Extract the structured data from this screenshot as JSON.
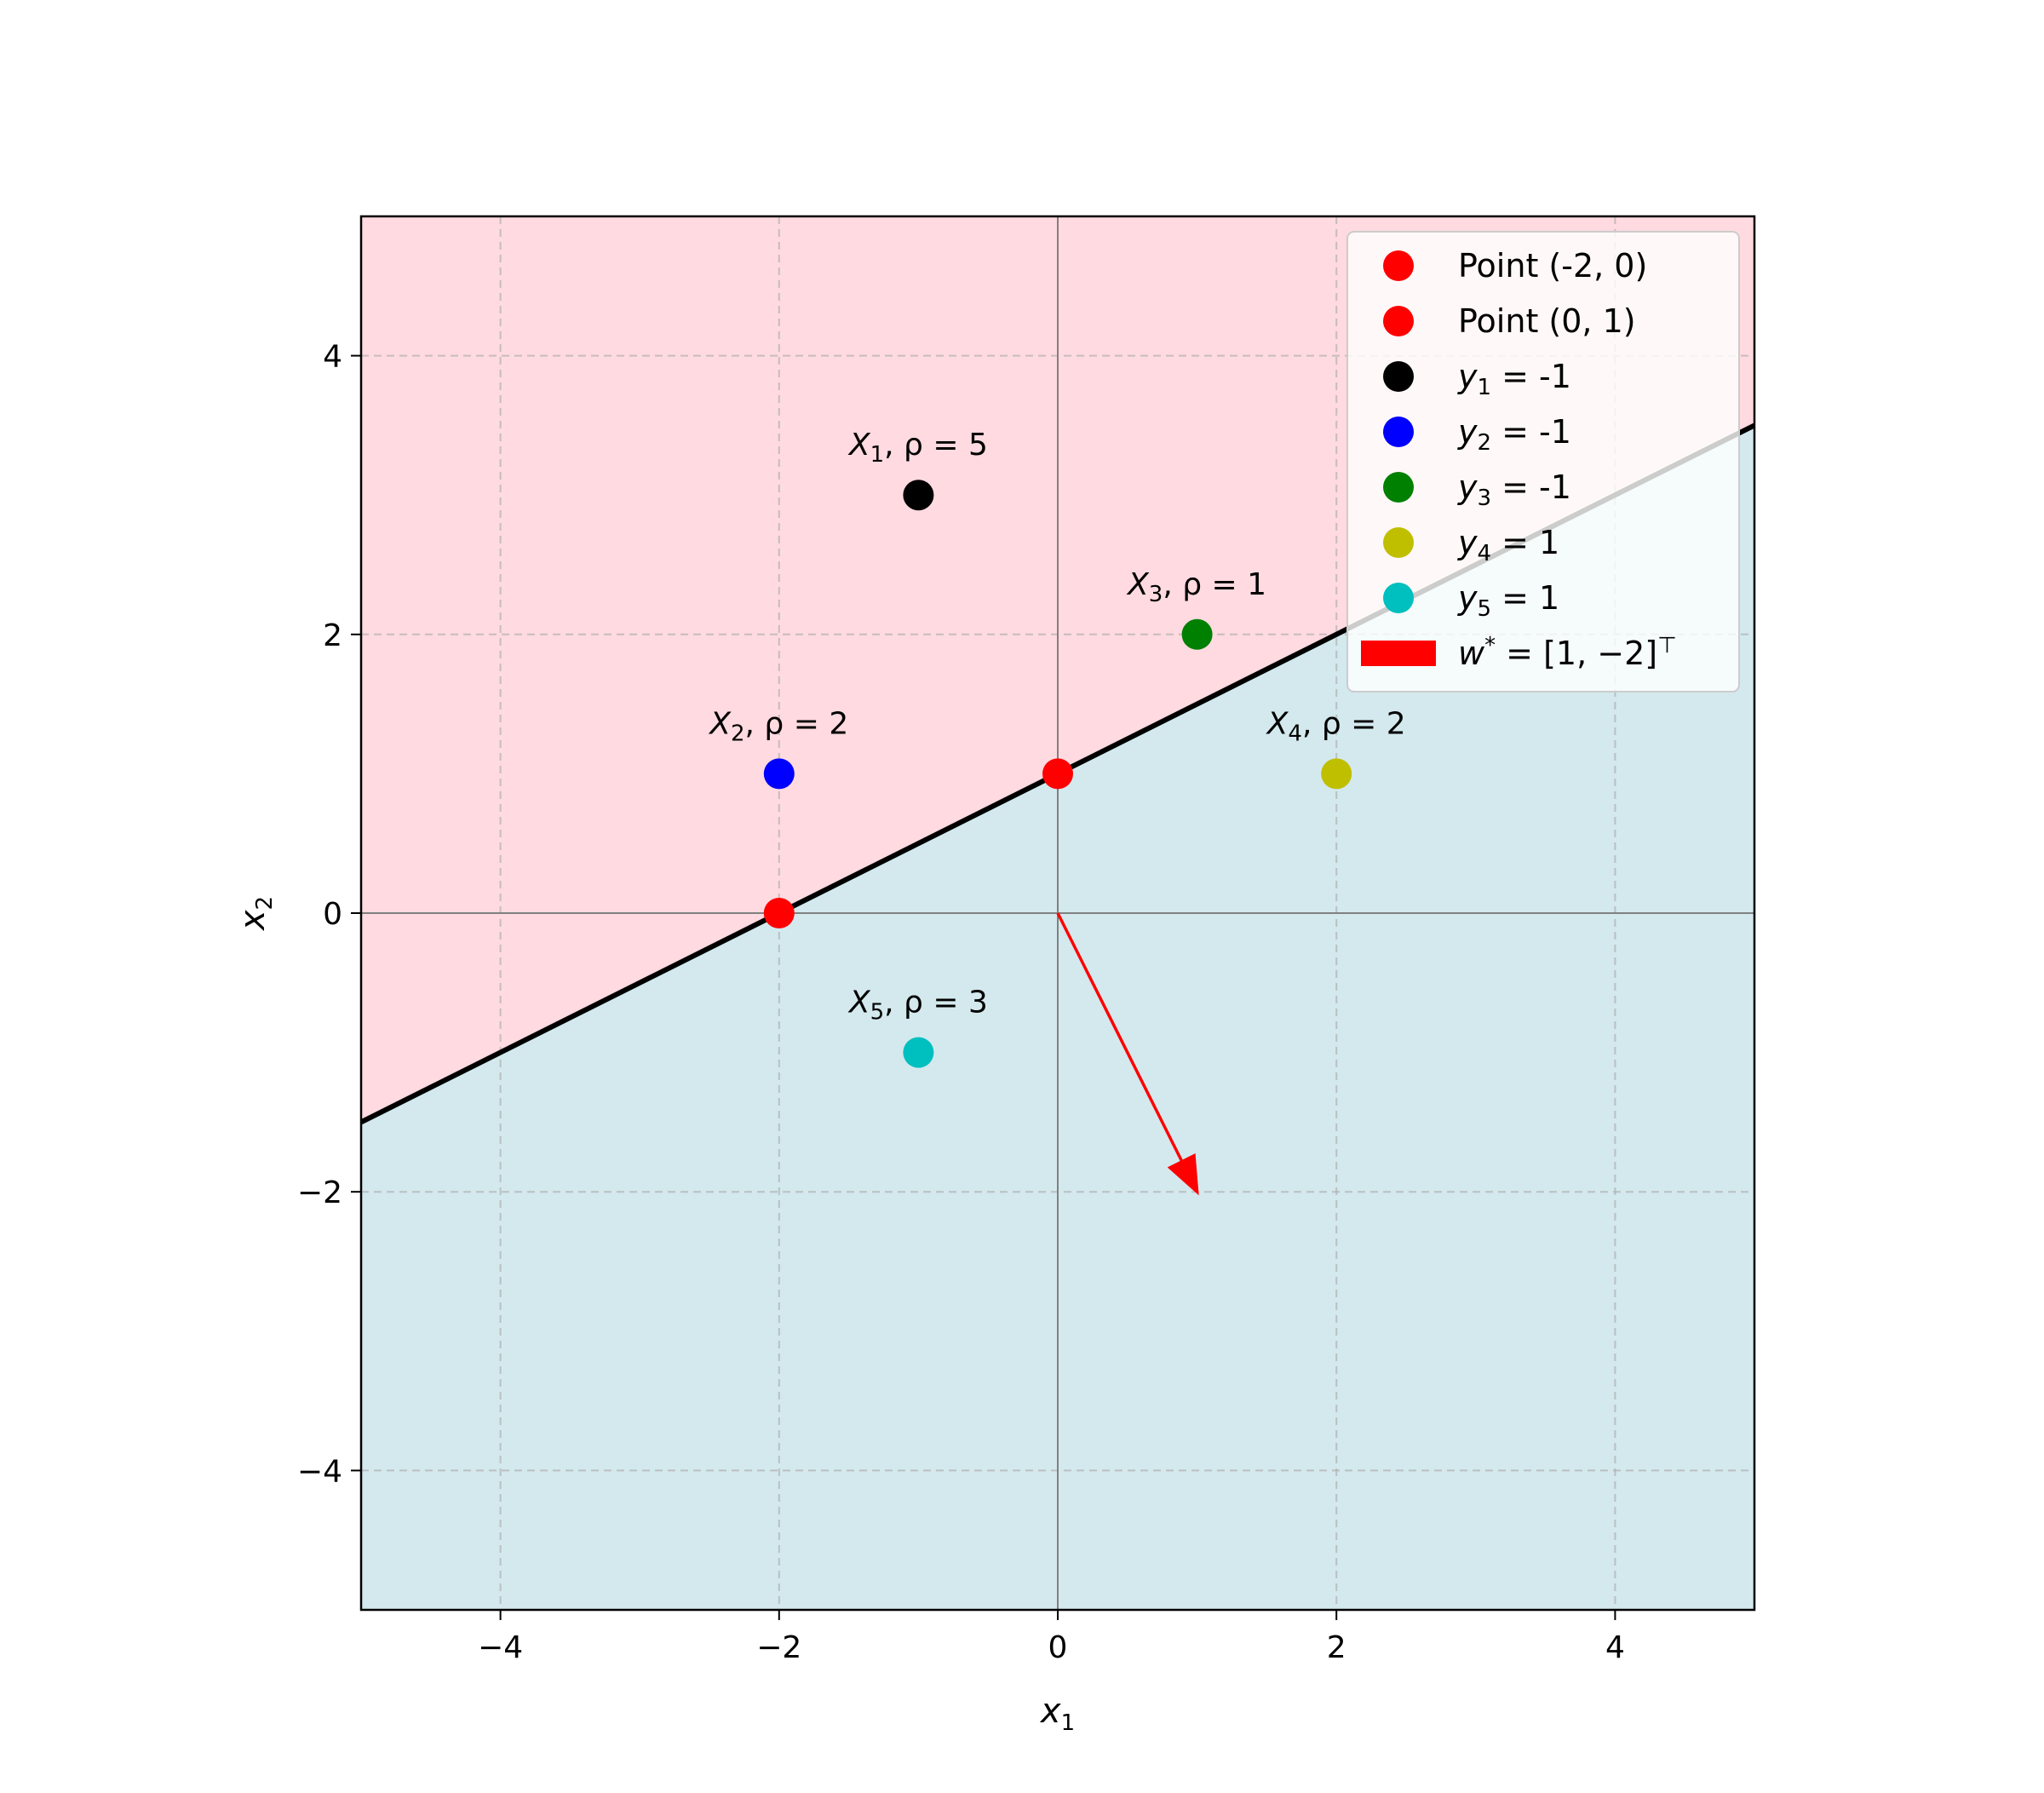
{
  "chart_data": {
    "type": "scatter",
    "title": "",
    "xlabel": "x",
    "xlabel_sub": "1",
    "ylabel": "x",
    "ylabel_sub": "2",
    "xlim": [
      -5,
      5
    ],
    "ylim": [
      -5,
      5
    ],
    "grid": true,
    "legend_position": "top-right",
    "x_ticks": [
      {
        "value": -4,
        "label": "−4"
      },
      {
        "value": -2,
        "label": "−2"
      },
      {
        "value": 0,
        "label": "0"
      },
      {
        "value": 2,
        "label": "2"
      },
      {
        "value": 4,
        "label": "4"
      }
    ],
    "y_ticks": [
      {
        "value": -4,
        "label": "−4"
      },
      {
        "value": -2,
        "label": "−2"
      },
      {
        "value": 0,
        "label": "0"
      },
      {
        "value": 2,
        "label": "2"
      },
      {
        "value": 4,
        "label": "4"
      }
    ],
    "regions": [
      {
        "side": "above",
        "color": "#ffdae0"
      },
      {
        "side": "below",
        "color": "#d3e9ee"
      }
    ],
    "decision_line": {
      "slope": 0.5,
      "intercept": 1,
      "color": "#000000"
    },
    "points": [
      {
        "x": -2,
        "y": 0,
        "color": "#ff0000",
        "legend": "Point (-2, 0)"
      },
      {
        "x": 0,
        "y": 1,
        "color": "#ff0000",
        "legend": "Point (0, 1)"
      },
      {
        "x": -1,
        "y": 3,
        "color": "#000000",
        "var": "y",
        "sub": "1",
        "value": " = -1",
        "label_var": "X",
        "label_sub": "1",
        "label_rest": ", ρ = 5"
      },
      {
        "x": -2,
        "y": 1,
        "color": "#0000ff",
        "var": "y",
        "sub": "2",
        "value": " = -1",
        "label_var": "X",
        "label_sub": "2",
        "label_rest": ", ρ = 2"
      },
      {
        "x": 1,
        "y": 2,
        "color": "#008000",
        "var": "y",
        "sub": "3",
        "value": " = -1",
        "label_var": "X",
        "label_sub": "3",
        "label_rest": ", ρ = 1"
      },
      {
        "x": 2,
        "y": 1,
        "color": "#bfbf00",
        "var": "y",
        "sub": "4",
        "value": " = 1",
        "label_var": "X",
        "label_sub": "4",
        "label_rest": ", ρ = 2"
      },
      {
        "x": -1,
        "y": -1,
        "color": "#00bfbf",
        "var": "y",
        "sub": "5",
        "value": " = 1",
        "label_var": "X",
        "label_sub": "5",
        "label_rest": ", ρ = 3"
      }
    ],
    "arrow": {
      "from": [
        0,
        0
      ],
      "to": [
        1,
        -2
      ],
      "color": "#ff0000",
      "legend_var": "w",
      "legend_sup": "*",
      "legend_rest": " = [1, −2]",
      "legend_sup2": "⊤"
    }
  }
}
